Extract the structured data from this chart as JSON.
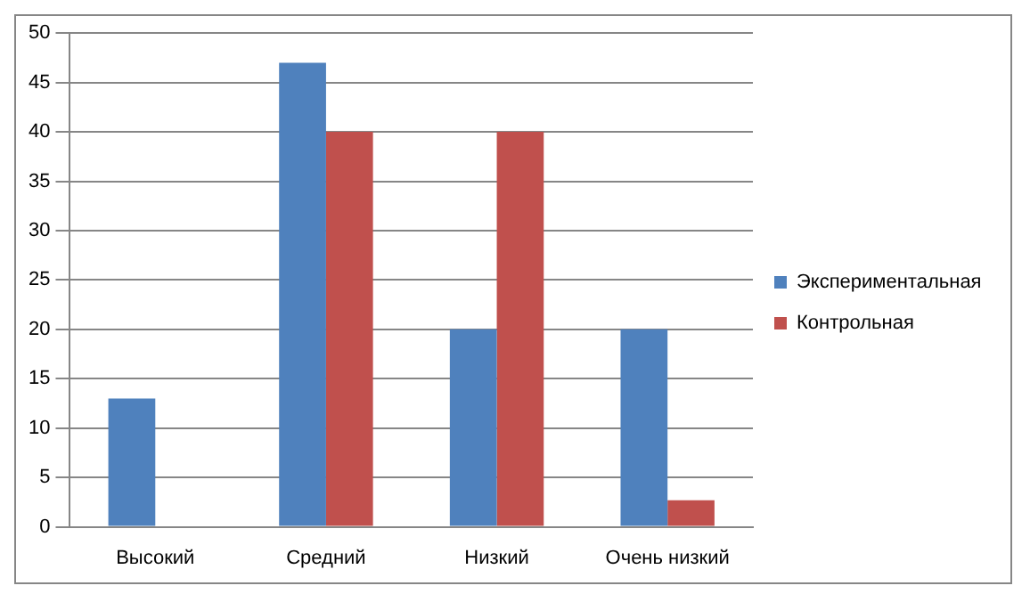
{
  "chart_data": {
    "type": "bar",
    "categories": [
      "Высокий",
      "Средний",
      "Низкий",
      "Очень низкий"
    ],
    "series": [
      {
        "name": "Экспериментальная",
        "color": "#4f81bd",
        "values": [
          13,
          47,
          20,
          20
        ]
      },
      {
        "name": "Контрольная",
        "color": "#c0504d",
        "values": [
          0,
          40,
          40,
          2.7
        ]
      }
    ],
    "ylim": [
      0,
      50
    ],
    "yticks": [
      0,
      5,
      10,
      15,
      20,
      25,
      30,
      35,
      40,
      45,
      50
    ],
    "grid": "y",
    "legend": "right"
  }
}
